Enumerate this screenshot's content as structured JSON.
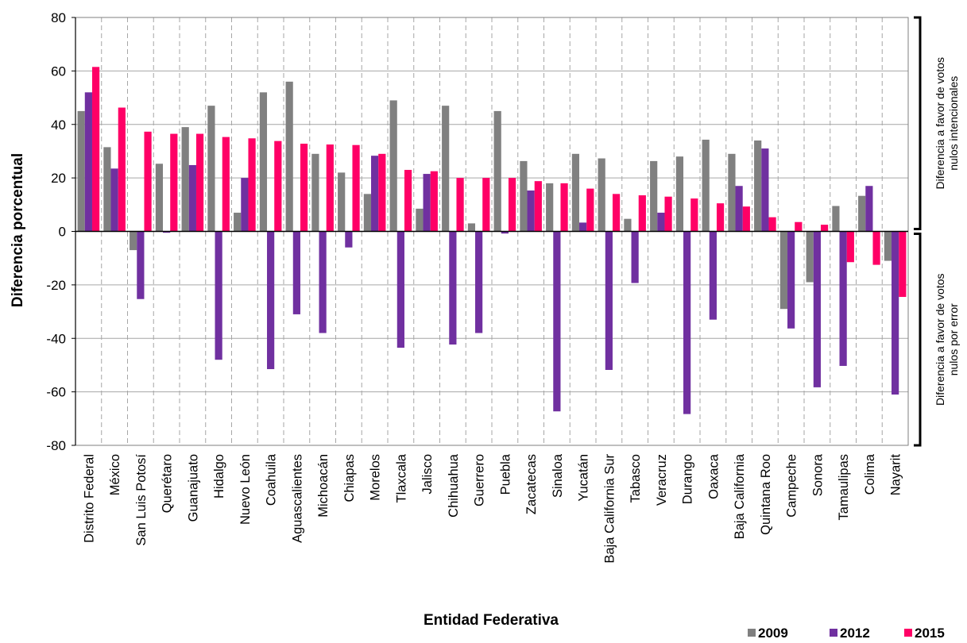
{
  "chart_data": {
    "type": "bar",
    "title": "",
    "xlabel": "Entidad Federativa",
    "ylabel": "Diferencia porcentual",
    "ylim": [
      -80,
      80
    ],
    "yticks": [
      -80,
      -60,
      -40,
      -20,
      0,
      20,
      40,
      60,
      80
    ],
    "grid": true,
    "legend_position": "bottom-right",
    "categories": [
      "Distrito Federal",
      "México",
      "San Luis Potosí",
      "Querétaro",
      "Guanajuato",
      "Hidalgo",
      "Nuevo León",
      "Coahuila",
      "Aguascalientes",
      "Michoacán",
      "Chiapas",
      "Morelos",
      "Tlaxcala",
      "Jalisco",
      "Chihuahua",
      "Guerrero",
      "Puebla",
      "Zacatecas",
      "Sinaloa",
      "Yucatán",
      "Baja California Sur",
      "Tabasco",
      "Veracruz",
      "Durango",
      "Oaxaca",
      "Baja California",
      "Quintana Roo",
      "Campeche",
      "Sonora",
      "Tamaulipas",
      "Colima",
      "Nayarit"
    ],
    "series": [
      {
        "name": "2009",
        "color": "#808080",
        "values": [
          45,
          31.5,
          -7,
          25.3,
          39,
          47,
          7,
          52,
          56,
          29,
          22,
          14,
          49,
          8.5,
          47,
          3,
          45,
          26.3,
          18,
          29,
          27.3,
          4.7,
          26.3,
          28,
          34.3,
          29,
          34,
          -29,
          -19,
          9.5,
          13.3,
          -11
        ]
      },
      {
        "name": "2012",
        "color": "#7030A0",
        "values": [
          52,
          23.5,
          -25.3,
          -0.5,
          24.8,
          -48,
          20,
          -51.5,
          -31,
          -38,
          -6,
          28.3,
          -43.5,
          21.5,
          -42.3,
          -38,
          -0.8,
          15.3,
          -67.3,
          3.3,
          -51.8,
          -19.3,
          7,
          -68.3,
          -33,
          17,
          31,
          -36.3,
          -58.3,
          -50.3,
          17,
          -61
        ]
      },
      {
        "name": "2015",
        "color": "#FF0066",
        "values": [
          61.5,
          46.3,
          37.3,
          36.5,
          36.5,
          35.3,
          34.8,
          33.8,
          32.8,
          32.5,
          32.3,
          29,
          23,
          22.5,
          20,
          20,
          20,
          18.8,
          18,
          16,
          14,
          13.5,
          13,
          12.3,
          10.5,
          9.3,
          5.3,
          3.5,
          2.5,
          -11.5,
          -12.5,
          -24.5
        ]
      }
    ],
    "annotations": [
      {
        "text_lines": [
          "Diferencia a favor de votos",
          "nulos intencionales"
        ],
        "range": [
          0,
          80
        ]
      },
      {
        "text_lines": [
          "Diferencia a favor de votos",
          "nulos por error"
        ],
        "range": [
          -80,
          0
        ]
      }
    ]
  }
}
